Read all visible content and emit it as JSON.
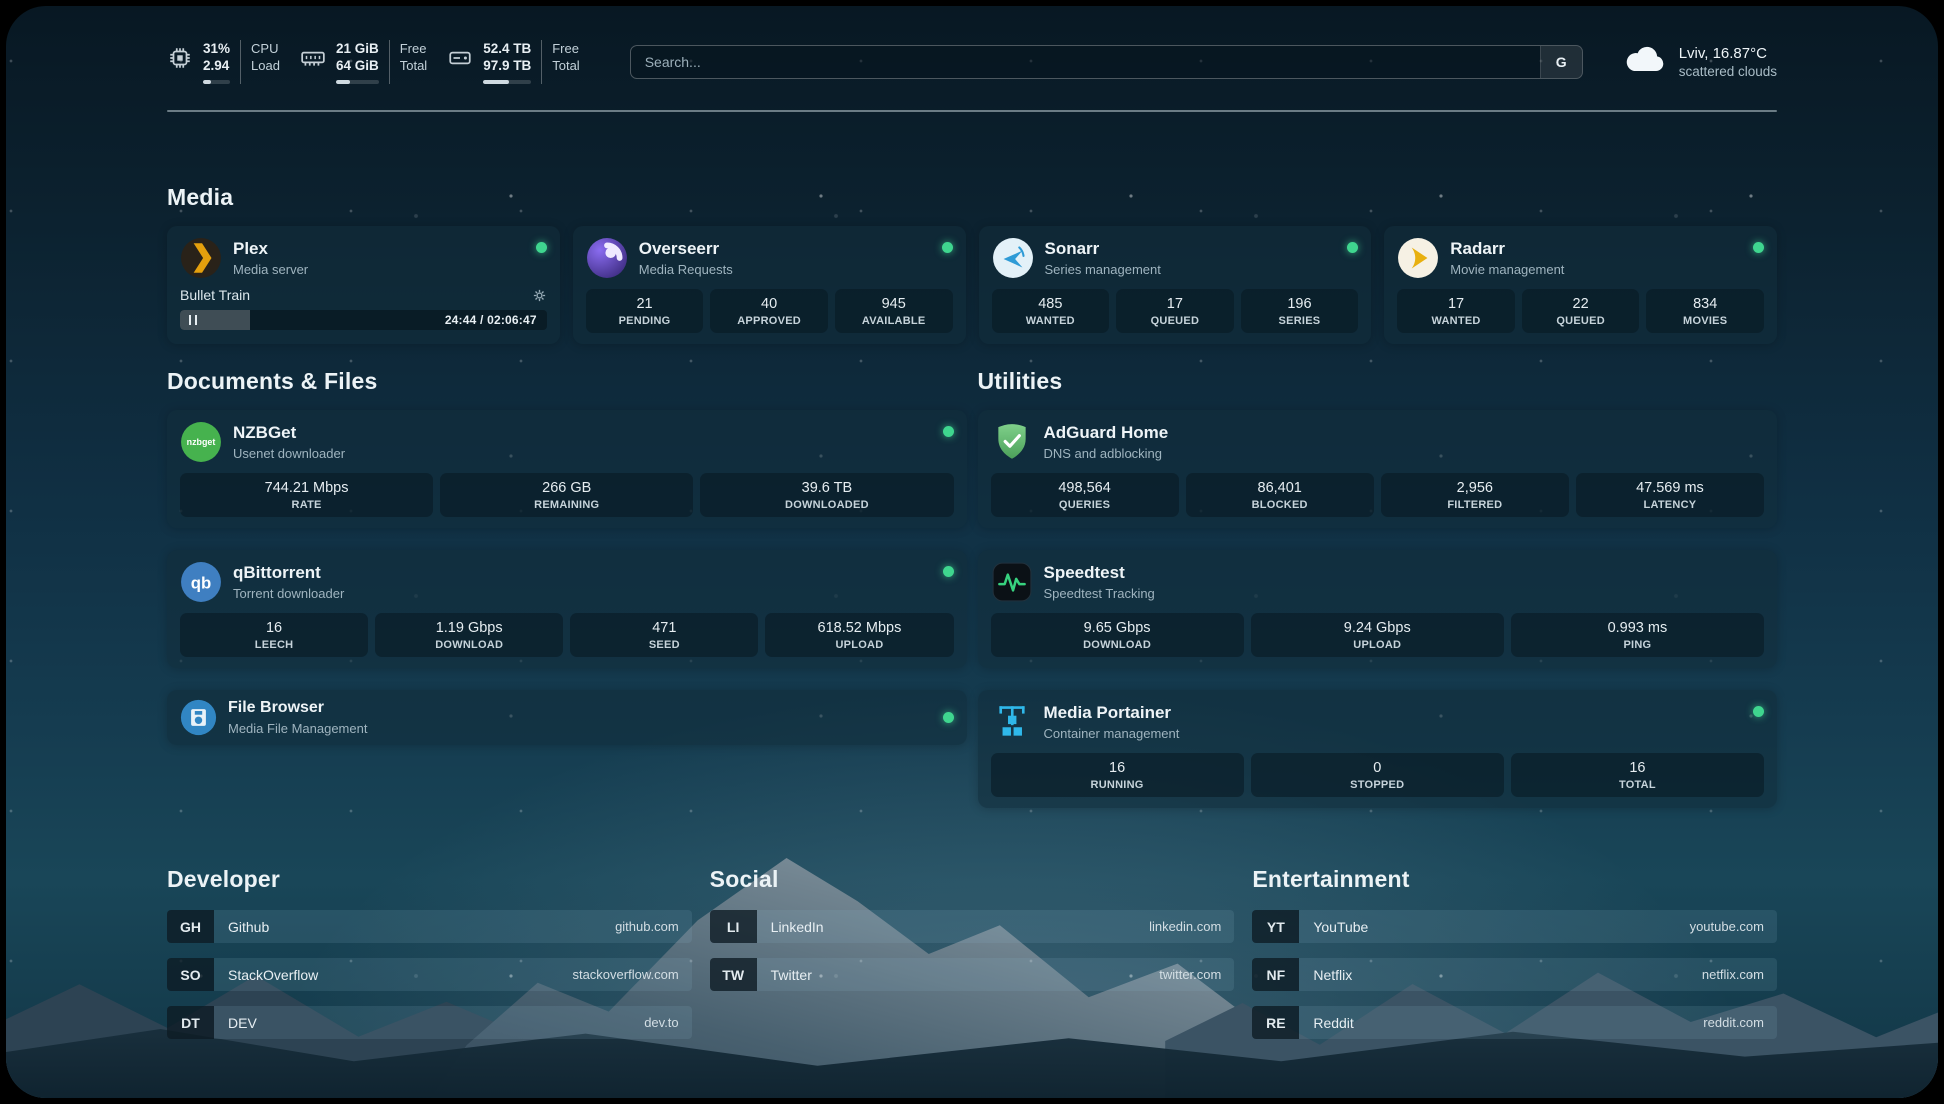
{
  "colors": {
    "status_online": "#3fd68f"
  },
  "topbar": {
    "cpu": {
      "value": "31%",
      "load": "2.94",
      "label_top": "CPU",
      "label_bottom": "Load",
      "percent": 31
    },
    "ram": {
      "free": "21 GiB",
      "total": "64 GiB",
      "label_top": "Free",
      "label_bottom": "Total",
      "percent": 33
    },
    "disk": {
      "free": "52.4 TB",
      "total": "97.9 TB",
      "label_top": "Free",
      "label_bottom": "Total",
      "percent": 53
    },
    "search": {
      "placeholder": "Search...",
      "engine": "G"
    },
    "weather": {
      "location": "Lviv, 16.87°C",
      "condition": "scattered clouds"
    }
  },
  "sections": {
    "media": "Media",
    "documents": "Documents & Files",
    "utilities": "Utilities",
    "developer": "Developer",
    "social": "Social",
    "entertainment": "Entertainment"
  },
  "apps": {
    "plex": {
      "name": "Plex",
      "desc": "Media server",
      "now_playing": "Bullet Train",
      "time": "24:44 / 02:06:47",
      "progress": 19
    },
    "overseerr": {
      "name": "Overseerr",
      "desc": "Media Requests",
      "stats": [
        {
          "value": "21",
          "label": "PENDING"
        },
        {
          "value": "40",
          "label": "APPROVED"
        },
        {
          "value": "945",
          "label": "AVAILABLE"
        }
      ]
    },
    "sonarr": {
      "name": "Sonarr",
      "desc": "Series management",
      "stats": [
        {
          "value": "485",
          "label": "WANTED"
        },
        {
          "value": "17",
          "label": "QUEUED"
        },
        {
          "value": "196",
          "label": "SERIES"
        }
      ]
    },
    "radarr": {
      "name": "Radarr",
      "desc": "Movie management",
      "stats": [
        {
          "value": "17",
          "label": "WANTED"
        },
        {
          "value": "22",
          "label": "QUEUED"
        },
        {
          "value": "834",
          "label": "MOVIES"
        }
      ]
    },
    "nzbget": {
      "name": "NZBGet",
      "desc": "Usenet downloader",
      "icon_text": "nzbget",
      "stats": [
        {
          "value": "744.21 Mbps",
          "label": "RATE"
        },
        {
          "value": "266 GB",
          "label": "REMAINING"
        },
        {
          "value": "39.6 TB",
          "label": "DOWNLOADED"
        }
      ]
    },
    "qbittorrent": {
      "name": "qBittorrent",
      "desc": "Torrent downloader",
      "icon_text": "qb",
      "stats": [
        {
          "value": "16",
          "label": "LEECH"
        },
        {
          "value": "1.19 Gbps",
          "label": "DOWNLOAD"
        },
        {
          "value": "471",
          "label": "SEED"
        },
        {
          "value": "618.52 Mbps",
          "label": "UPLOAD"
        }
      ]
    },
    "filebrowser": {
      "name": "File Browser",
      "desc": "Media File Management"
    },
    "adguard": {
      "name": "AdGuard Home",
      "desc": "DNS and adblocking",
      "stats": [
        {
          "value": "498,564",
          "label": "QUERIES"
        },
        {
          "value": "86,401",
          "label": "BLOCKED"
        },
        {
          "value": "2,956",
          "label": "FILTERED"
        },
        {
          "value": "47.569 ms",
          "label": "LATENCY"
        }
      ]
    },
    "speedtest": {
      "name": "Speedtest",
      "desc": "Speedtest Tracking",
      "stats": [
        {
          "value": "9.65 Gbps",
          "label": "DOWNLOAD"
        },
        {
          "value": "9.24 Gbps",
          "label": "UPLOAD"
        },
        {
          "value": "0.993 ms",
          "label": "PING"
        }
      ]
    },
    "portainer": {
      "name": "Media Portainer",
      "desc": "Container management",
      "stats": [
        {
          "value": "16",
          "label": "RUNNING"
        },
        {
          "value": "0",
          "label": "STOPPED"
        },
        {
          "value": "16",
          "label": "TOTAL"
        }
      ]
    }
  },
  "bookmarks": {
    "developer": [
      {
        "abbr": "GH",
        "name": "Github",
        "url": "github.com"
      },
      {
        "abbr": "SO",
        "name": "StackOverflow",
        "url": "stackoverflow.com"
      },
      {
        "abbr": "DT",
        "name": "DEV",
        "url": "dev.to"
      }
    ],
    "social": [
      {
        "abbr": "LI",
        "name": "LinkedIn",
        "url": "linkedin.com"
      },
      {
        "abbr": "TW",
        "name": "Twitter",
        "url": "twitter.com"
      }
    ],
    "entertainment": [
      {
        "abbr": "YT",
        "name": "YouTube",
        "url": "youtube.com"
      },
      {
        "abbr": "NF",
        "name": "Netflix",
        "url": "netflix.com"
      },
      {
        "abbr": "RE",
        "name": "Reddit",
        "url": "reddit.com"
      }
    ]
  }
}
